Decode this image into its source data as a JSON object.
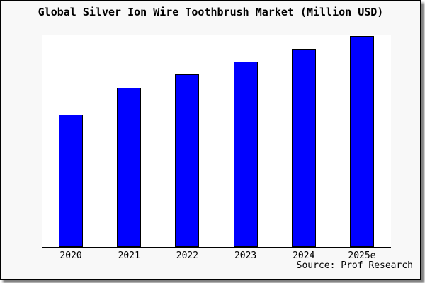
{
  "title": "Global Silver Ion Wire Toothbrush Market (Million USD)",
  "source_note": "Source: Prof Research",
  "colors": {
    "bar_fill": "#0000ff",
    "bar_border": "#000000",
    "card_background": "#f8f8f8",
    "plot_background": "#ffffff",
    "frame_border": "#000000",
    "text": "#000000"
  },
  "chart_data": {
    "type": "bar",
    "title": "Global Silver Ion Wire Toothbrush Market (Million USD)",
    "categories": [
      "2020",
      "2021",
      "2022",
      "2023",
      "2024",
      "2025e"
    ],
    "values": [
      62.5,
      75.0,
      81.2,
      87.5,
      93.4,
      99.3
    ],
    "units": "relative bar height % (no y-axis scale shown in image)",
    "xlabel": "",
    "ylabel": "",
    "ylim": [
      0,
      100
    ],
    "grid": false,
    "legend": false,
    "annotations": [
      "Source: Prof Research"
    ]
  }
}
